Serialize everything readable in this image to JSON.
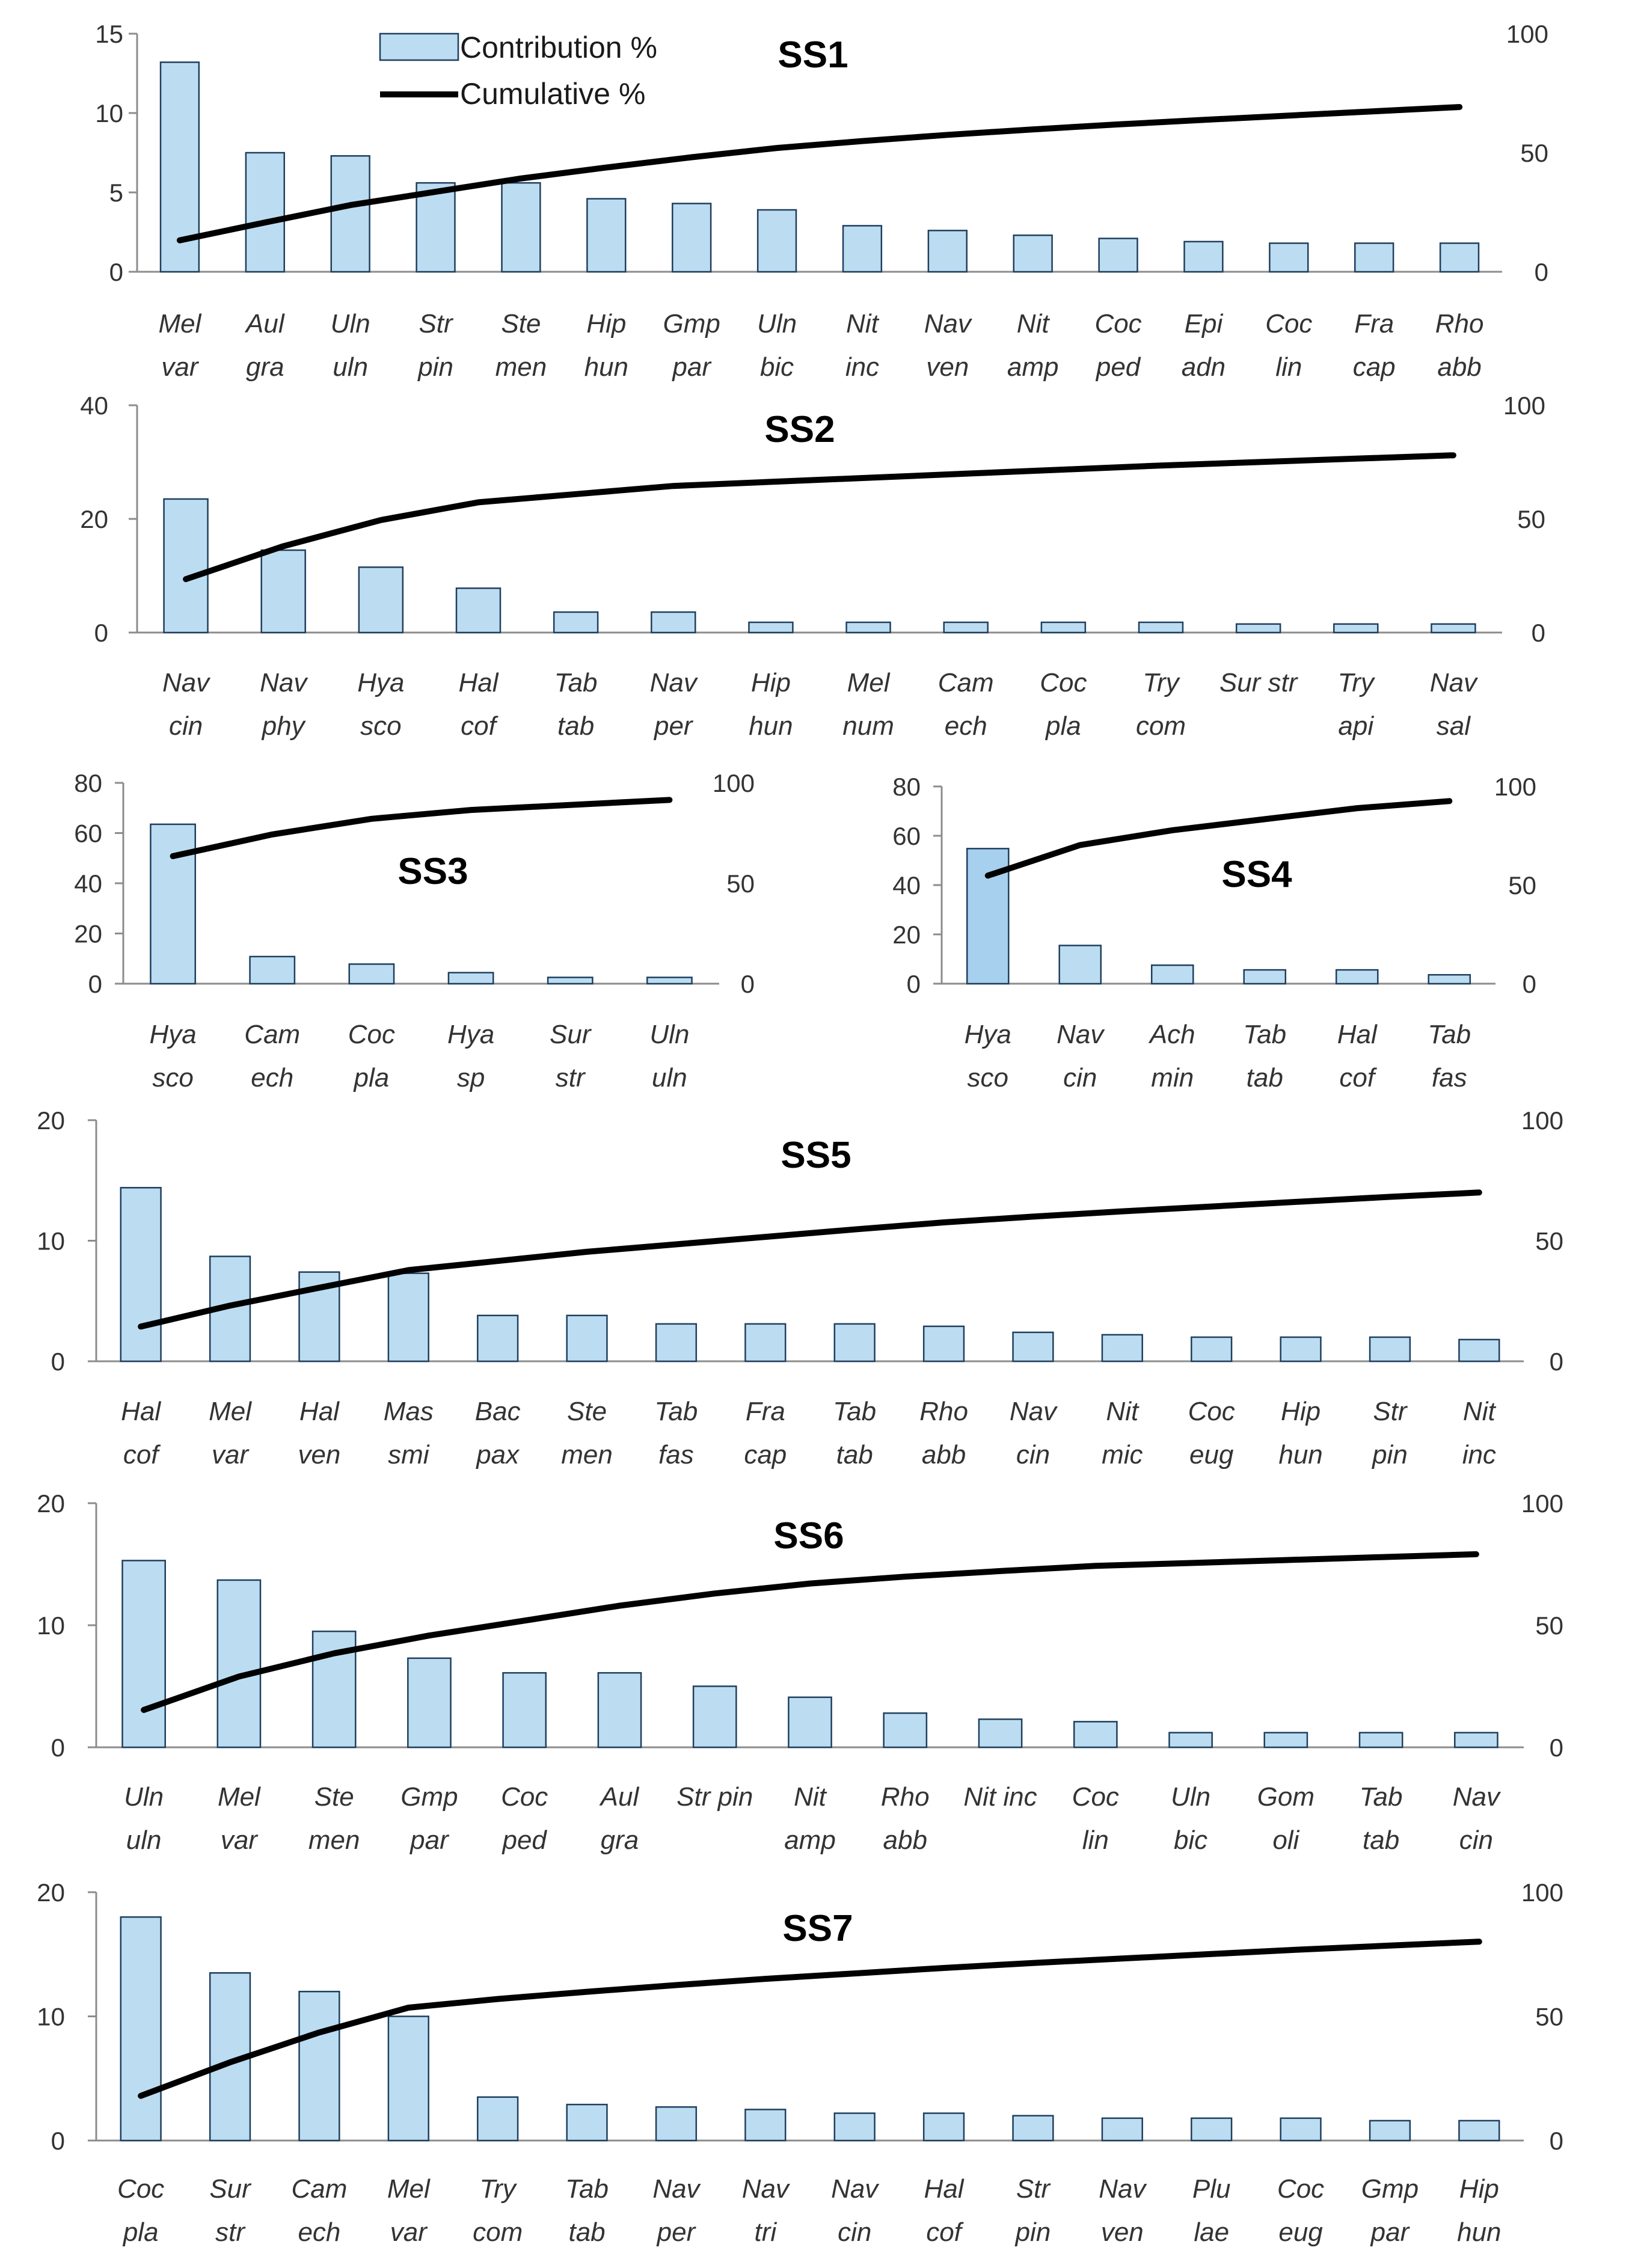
{
  "colors": {
    "bar_fill": "#bcdcf1",
    "bar_fill_dark": "#a7cfee",
    "bar_stroke": "#1f3f5e",
    "line": "#000000",
    "axis": "#8c8c8c"
  },
  "legend": {
    "bar_label": "Contribution %",
    "line_label": "Cumulative %"
  },
  "chart_data": [
    {
      "type": "bar",
      "title": "SS1",
      "categories": [
        [
          "Mel",
          "var"
        ],
        [
          "Aul",
          "gra"
        ],
        [
          "Uln",
          "uln"
        ],
        [
          "Str",
          "pin"
        ],
        [
          "Ste",
          "men"
        ],
        [
          "Hip",
          "hun"
        ],
        [
          "Gmp",
          "par"
        ],
        [
          "Uln",
          "bic"
        ],
        [
          "Nit",
          "inc"
        ],
        [
          "Nav",
          "ven"
        ],
        [
          "Nit",
          "amp"
        ],
        [
          "Coc",
          "ped"
        ],
        [
          "Epi",
          "adn"
        ],
        [
          "Coc",
          "lin"
        ],
        [
          "Fra",
          "cap"
        ],
        [
          "Rho",
          "abb"
        ]
      ],
      "values": [
        13.2,
        7.5,
        7.3,
        5.6,
        5.6,
        4.6,
        4.3,
        3.9,
        2.9,
        2.6,
        2.3,
        2.1,
        1.9,
        1.8,
        1.8,
        1.8
      ],
      "cumulative": [
        13.2,
        20.7,
        28.0,
        33.6,
        39.2,
        43.8,
        48.1,
        52.0,
        54.9,
        57.5,
        59.8,
        61.9,
        63.8,
        65.6,
        67.4,
        69.2
      ],
      "left_axis": {
        "ylim": [
          0,
          15
        ],
        "ticks": [
          0,
          5,
          10,
          15
        ]
      },
      "right_axis": {
        "ylim": [
          0,
          100
        ],
        "ticks": [
          0,
          50,
          100
        ]
      }
    },
    {
      "type": "bar",
      "title": "SS2",
      "categories": [
        [
          "Nav",
          "cin"
        ],
        [
          "Nav",
          "phy"
        ],
        [
          "Hya",
          "sco"
        ],
        [
          "Hal",
          "cof"
        ],
        [
          "Tab",
          "tab"
        ],
        [
          "Nav",
          "per"
        ],
        [
          "Hip",
          "hun"
        ],
        [
          "Mel",
          "num"
        ],
        [
          "Cam",
          "ech"
        ],
        [
          "Coc",
          "pla"
        ],
        [
          "Try",
          "com"
        ],
        [
          "Sur str"
        ],
        [
          "Try",
          "api"
        ],
        [
          "Nav",
          "sal"
        ]
      ],
      "values": [
        23.5,
        14.5,
        11.5,
        7.8,
        3.6,
        3.6,
        1.8,
        1.8,
        1.8,
        1.8,
        1.8,
        1.5,
        1.5,
        1.5
      ],
      "cumulative": [
        23.5,
        38.0,
        49.5,
        57.3,
        60.9,
        64.5,
        66.3,
        68.1,
        69.9,
        71.7,
        73.5,
        75.0,
        76.5,
        78.0
      ],
      "left_axis": {
        "ylim": [
          0,
          40
        ],
        "ticks": [
          0,
          20,
          40
        ]
      },
      "right_axis": {
        "ylim": [
          0,
          100
        ],
        "ticks": [
          0,
          50,
          100
        ]
      }
    },
    {
      "type": "bar",
      "title": "SS3",
      "categories": [
        [
          "Hya",
          "sco"
        ],
        [
          "Cam",
          "ech"
        ],
        [
          "Coc",
          "pla"
        ],
        [
          "Hya",
          "sp"
        ],
        [
          "Sur",
          "str"
        ],
        [
          "Uln",
          "uln"
        ]
      ],
      "values": [
        63.5,
        10.8,
        7.8,
        4.4,
        2.5,
        2.5
      ],
      "cumulative": [
        63.5,
        74.3,
        82.1,
        86.5,
        89.0,
        91.5
      ],
      "left_axis": {
        "ylim": [
          0,
          80
        ],
        "ticks": [
          0,
          20,
          40,
          60,
          80
        ]
      },
      "right_axis": {
        "ylim": [
          0,
          100
        ],
        "ticks": [
          0,
          50,
          100
        ]
      }
    },
    {
      "type": "bar",
      "title": "SS4",
      "categories": [
        [
          "Hya",
          "sco"
        ],
        [
          "Nav",
          "cin"
        ],
        [
          "Ach",
          "min"
        ],
        [
          "Tab",
          "tab"
        ],
        [
          "Hal",
          "cof"
        ],
        [
          "Tab",
          "fas"
        ]
      ],
      "values": [
        54.8,
        15.5,
        7.5,
        5.6,
        5.6,
        3.6
      ],
      "cumulative": [
        54.8,
        70.3,
        77.8,
        83.4,
        89.0,
        92.6
      ],
      "left_axis": {
        "ylim": [
          0,
          80
        ],
        "ticks": [
          0,
          20,
          40,
          60,
          80
        ]
      },
      "right_axis": {
        "ylim": [
          0,
          100
        ],
        "ticks": [
          0,
          50,
          100
        ]
      }
    },
    {
      "type": "bar",
      "title": "SS5",
      "categories": [
        [
          "Hal",
          "cof"
        ],
        [
          "Mel",
          "var"
        ],
        [
          "Hal",
          "ven"
        ],
        [
          "Mas",
          "smi"
        ],
        [
          "Bac",
          "pax"
        ],
        [
          "Ste",
          "men"
        ],
        [
          "Tab",
          "fas"
        ],
        [
          "Fra",
          "cap"
        ],
        [
          "Tab",
          "tab"
        ],
        [
          "Rho",
          "abb"
        ],
        [
          "Nav",
          "cin"
        ],
        [
          "Nit",
          "mic"
        ],
        [
          "Coc",
          "eug"
        ],
        [
          "Hip",
          "hun"
        ],
        [
          "Str",
          "pin"
        ],
        [
          "Nit",
          "inc"
        ]
      ],
      "values": [
        14.4,
        8.7,
        7.4,
        7.3,
        3.8,
        3.8,
        3.1,
        3.1,
        3.1,
        2.9,
        2.4,
        2.2,
        2.0,
        2.0,
        2.0,
        1.8
      ],
      "cumulative": [
        14.4,
        23.1,
        30.5,
        37.8,
        41.6,
        45.4,
        48.5,
        51.6,
        54.7,
        57.6,
        60.0,
        62.2,
        64.2,
        66.2,
        68.2,
        70.0
      ],
      "left_axis": {
        "ylim": [
          0,
          20
        ],
        "ticks": [
          0,
          10,
          20
        ]
      },
      "right_axis": {
        "ylim": [
          0,
          100
        ],
        "ticks": [
          0,
          50,
          100
        ]
      }
    },
    {
      "type": "bar",
      "title": "SS6",
      "categories": [
        [
          "Uln",
          "uln"
        ],
        [
          "Mel",
          "var"
        ],
        [
          "Ste",
          "men"
        ],
        [
          "Gmp",
          "par"
        ],
        [
          "Coc",
          "ped"
        ],
        [
          "Aul",
          "gra"
        ],
        [
          "Str pin"
        ],
        [
          "Nit",
          "amp"
        ],
        [
          "Rho",
          "abb"
        ],
        [
          "Nit inc"
        ],
        [
          "Coc",
          "lin"
        ],
        [
          "Uln",
          "bic"
        ],
        [
          "Gom",
          "oli"
        ],
        [
          "Tab",
          "tab"
        ],
        [
          "Nav",
          "cin"
        ]
      ],
      "values": [
        15.3,
        13.7,
        9.5,
        7.3,
        6.1,
        6.1,
        5.0,
        4.1,
        2.8,
        2.3,
        2.1,
        1.2,
        1.2,
        1.2,
        1.2
      ],
      "cumulative": [
        15.3,
        29.0,
        38.5,
        45.8,
        51.9,
        58.0,
        63.0,
        67.1,
        69.9,
        72.2,
        74.3,
        75.5,
        76.7,
        77.9,
        79.1
      ],
      "left_axis": {
        "ylim": [
          0,
          20
        ],
        "ticks": [
          0,
          10,
          20
        ]
      },
      "right_axis": {
        "ylim": [
          0,
          100
        ],
        "ticks": [
          0,
          50,
          100
        ]
      }
    },
    {
      "type": "bar",
      "title": "SS7",
      "categories": [
        [
          "Coc",
          "pla"
        ],
        [
          "Sur",
          "str"
        ],
        [
          "Cam",
          "ech"
        ],
        [
          "Mel",
          "var"
        ],
        [
          "Try",
          "com"
        ],
        [
          "Tab",
          "tab"
        ],
        [
          "Nav",
          "per"
        ],
        [
          "Nav",
          "tri"
        ],
        [
          "Nav",
          "cin"
        ],
        [
          "Hal",
          "cof"
        ],
        [
          "Str",
          "pin"
        ],
        [
          "Nav",
          "ven"
        ],
        [
          "Plu",
          "lae"
        ],
        [
          "Coc",
          "eug"
        ],
        [
          "Gmp",
          "par"
        ],
        [
          "Hip",
          "hun"
        ]
      ],
      "values": [
        18.0,
        13.5,
        12.0,
        10.0,
        3.5,
        2.9,
        2.7,
        2.5,
        2.2,
        2.2,
        2.0,
        1.8,
        1.8,
        1.8,
        1.6,
        1.6
      ],
      "cumulative": [
        18.0,
        31.5,
        43.5,
        53.5,
        57.0,
        59.9,
        62.6,
        65.1,
        67.3,
        69.5,
        71.5,
        73.3,
        75.1,
        76.9,
        78.5,
        80.1
      ],
      "left_axis": {
        "ylim": [
          0,
          20
        ],
        "ticks": [
          0,
          10,
          20
        ]
      },
      "right_axis": {
        "ylim": [
          0,
          100
        ],
        "ticks": [
          0,
          50,
          100
        ]
      }
    }
  ]
}
